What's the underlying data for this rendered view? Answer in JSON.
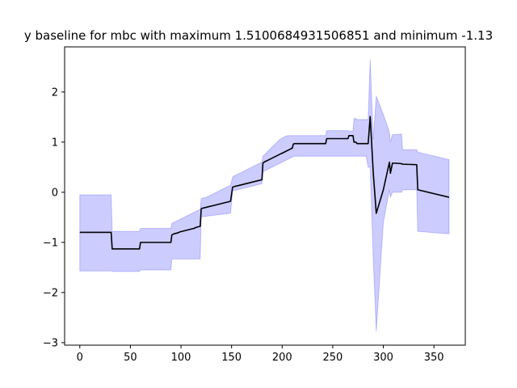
{
  "chart_data": {
    "type": "line",
    "title": "y baseline for mbc with maximum 1.5100684931506851 and minimum -1.13",
    "xlabel": "",
    "ylabel": "",
    "xlim": [
      -15,
      381
    ],
    "ylim": [
      -3.05,
      2.9
    ],
    "x_ticks": [
      0,
      50,
      100,
      150,
      200,
      250,
      300,
      350
    ],
    "y_ticks": [
      -3,
      -2,
      -1,
      0,
      1,
      2
    ],
    "x_tick_labels": [
      "0",
      "50",
      "100",
      "150",
      "200",
      "250",
      "300",
      "350"
    ],
    "y_tick_labels": [
      "−3",
      "−2",
      "−1",
      "0",
      "1",
      "2"
    ],
    "grid": false,
    "series": [
      {
        "role": "mean-line",
        "color": "#000000",
        "x": [
          0,
          31,
          32,
          59,
          60,
          90,
          91,
          93,
          95,
          97,
          99,
          101,
          103,
          105,
          107,
          109,
          111,
          113,
          115,
          117,
          119,
          120,
          121,
          123,
          125,
          127,
          129,
          131,
          133,
          135,
          137,
          139,
          141,
          143,
          145,
          147,
          149,
          151,
          152,
          154,
          156,
          158,
          160,
          162,
          164,
          166,
          168,
          170,
          172,
          174,
          176,
          178,
          180,
          181,
          182,
          184,
          186,
          188,
          190,
          192,
          194,
          196,
          198,
          200,
          202,
          204,
          206,
          208,
          210,
          211,
          212,
          243,
          244,
          265,
          266,
          270,
          271,
          273,
          274,
          283,
          285,
          287,
          290,
          293,
          300,
          306,
          307,
          309,
          312,
          318,
          319,
          333,
          334,
          365
        ],
        "values": [
          -0.8,
          -0.8,
          -1.13,
          -1.13,
          -1.0,
          -1.0,
          -0.85,
          -0.83,
          -0.82,
          -0.81,
          -0.79,
          -0.78,
          -0.77,
          -0.76,
          -0.75,
          -0.74,
          -0.73,
          -0.72,
          -0.7,
          -0.69,
          -0.68,
          -0.33,
          -0.32,
          -0.31,
          -0.3,
          -0.29,
          -0.28,
          -0.27,
          -0.26,
          -0.25,
          -0.24,
          -0.23,
          -0.22,
          -0.21,
          -0.2,
          -0.19,
          -0.18,
          0.1,
          0.11,
          0.12,
          0.13,
          0.14,
          0.15,
          0.16,
          0.17,
          0.18,
          0.19,
          0.2,
          0.21,
          0.22,
          0.23,
          0.24,
          0.25,
          0.58,
          0.6,
          0.62,
          0.64,
          0.66,
          0.68,
          0.7,
          0.72,
          0.74,
          0.76,
          0.78,
          0.8,
          0.82,
          0.84,
          0.86,
          0.88,
          0.96,
          0.97,
          0.97,
          1.07,
          1.07,
          1.13,
          1.13,
          1.0,
          1.0,
          0.97,
          0.97,
          0.97,
          1.51,
          0.4,
          -0.42,
          0.05,
          0.6,
          0.38,
          0.58,
          0.58,
          0.57,
          0.56,
          0.55,
          0.05,
          -0.1
        ]
      }
    ],
    "band": {
      "role": "spread",
      "color": "#0000ff",
      "x": [
        0,
        31,
        32,
        59,
        60,
        90,
        91,
        93,
        95,
        97,
        99,
        101,
        103,
        105,
        107,
        109,
        111,
        113,
        115,
        117,
        119,
        120,
        121,
        123,
        125,
        127,
        129,
        131,
        133,
        135,
        137,
        139,
        141,
        143,
        145,
        147,
        149,
        151,
        152,
        154,
        156,
        158,
        160,
        162,
        164,
        166,
        168,
        170,
        172,
        174,
        176,
        178,
        180,
        181,
        182,
        184,
        186,
        188,
        190,
        192,
        194,
        196,
        198,
        200,
        202,
        204,
        206,
        208,
        210,
        211,
        212,
        243,
        244,
        265,
        266,
        270,
        271,
        273,
        274,
        283,
        285,
        287,
        290,
        293,
        300,
        306,
        307,
        309,
        312,
        318,
        319,
        333,
        334,
        365
      ],
      "upper": [
        -0.05,
        -0.05,
        -0.78,
        -0.78,
        -0.72,
        -0.72,
        -0.62,
        -0.6,
        -0.58,
        -0.56,
        -0.54,
        -0.52,
        -0.5,
        -0.48,
        -0.46,
        -0.44,
        -0.42,
        -0.4,
        -0.38,
        -0.36,
        -0.34,
        -0.13,
        -0.12,
        -0.11,
        -0.1,
        -0.08,
        -0.06,
        -0.04,
        -0.02,
        0.0,
        0.02,
        0.04,
        0.06,
        0.08,
        0.1,
        0.12,
        0.14,
        0.3,
        0.32,
        0.34,
        0.36,
        0.38,
        0.4,
        0.42,
        0.44,
        0.46,
        0.48,
        0.5,
        0.52,
        0.54,
        0.56,
        0.58,
        0.6,
        0.72,
        0.74,
        0.78,
        0.82,
        0.86,
        0.9,
        0.94,
        0.98,
        1.02,
        1.06,
        1.08,
        1.1,
        1.12,
        1.13,
        1.13,
        1.13,
        1.13,
        1.13,
        1.13,
        1.23,
        1.23,
        1.22,
        1.22,
        1.47,
        1.47,
        1.45,
        1.45,
        1.45,
        2.65,
        1.05,
        1.92,
        1.55,
        1.2,
        1.0,
        1.15,
        1.15,
        1.16,
        0.85,
        0.85,
        0.8,
        0.65
      ],
      "lower": [
        -1.57,
        -1.57,
        -1.58,
        -1.58,
        -1.55,
        -1.55,
        -1.33,
        -1.33,
        -1.33,
        -1.33,
        -1.33,
        -1.33,
        -1.33,
        -1.33,
        -1.33,
        -1.33,
        -1.33,
        -1.33,
        -1.33,
        -1.33,
        -1.33,
        -0.49,
        -0.49,
        -0.48,
        -0.48,
        -0.47,
        -0.47,
        -0.46,
        -0.46,
        -0.45,
        -0.45,
        -0.44,
        -0.44,
        -0.43,
        -0.43,
        -0.42,
        -0.42,
        0.02,
        0.03,
        0.04,
        0.05,
        0.06,
        0.07,
        0.08,
        0.09,
        0.1,
        0.11,
        0.12,
        0.13,
        0.14,
        0.15,
        0.16,
        0.17,
        0.4,
        0.42,
        0.44,
        0.46,
        0.48,
        0.5,
        0.52,
        0.54,
        0.56,
        0.58,
        0.6,
        0.62,
        0.64,
        0.66,
        0.68,
        0.7,
        0.72,
        0.72,
        0.72,
        0.72,
        0.72,
        0.72,
        0.72,
        0.72,
        0.72,
        0.72,
        0.72,
        0.5,
        0.5,
        -1.3,
        -2.78,
        -0.6,
        0.05,
        -0.1,
        0.0,
        0.0,
        0.0,
        0.05,
        0.05,
        -0.78,
        -0.83
      ]
    }
  }
}
